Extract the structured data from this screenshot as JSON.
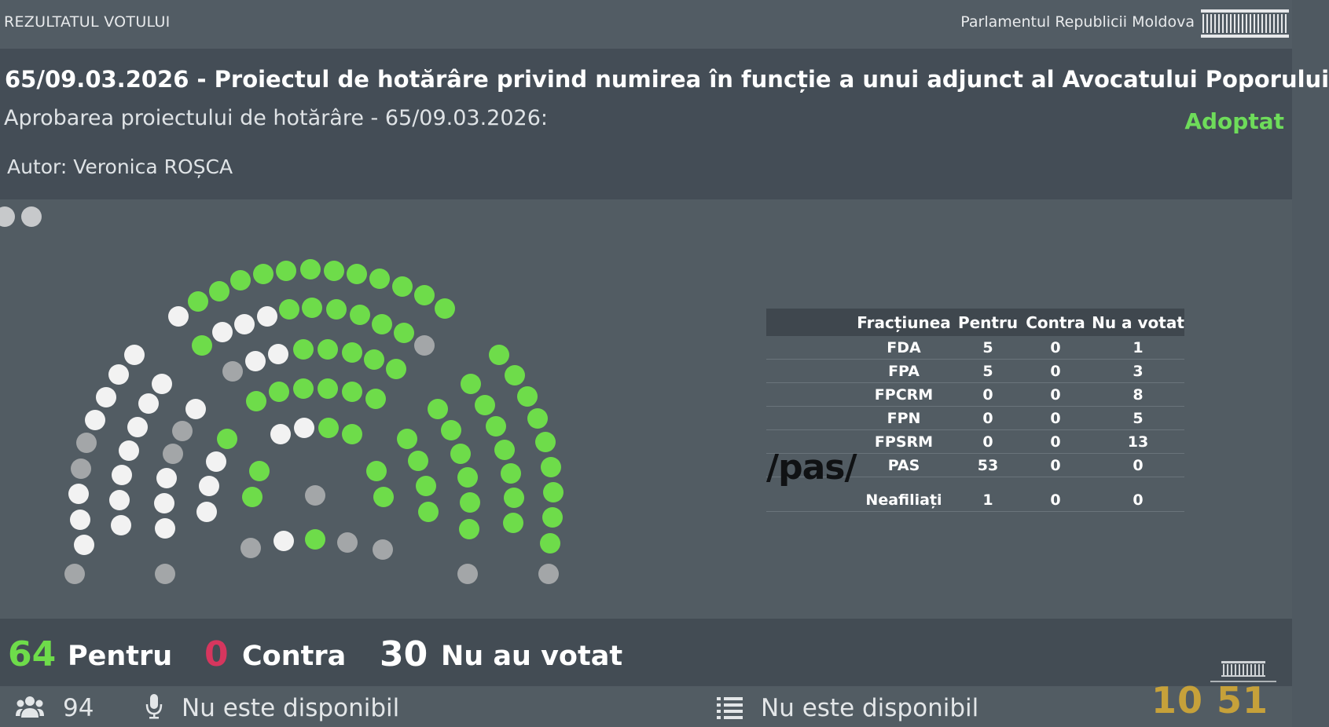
{
  "topbar": {
    "left_label": "REZULTATUL VOTULUI",
    "right_label": "Parlamentul Republicii Moldova"
  },
  "header": {
    "title": "65/09.03.2026 - Proiectul de hotărâre privind numirea în funcție a unui adjunct al Avocatului Poporului",
    "subtitle": "Aprobarea proiectului de hotărâre - 65/09.03.2026:",
    "status": "Adoptat",
    "author": "Autor: Veronica ROȘCA"
  },
  "table": {
    "headers": [
      "Fracțiunea",
      "Pentru",
      "Contra",
      "Nu a votat"
    ],
    "rows": [
      [
        "FDA",
        "5",
        "0",
        "1"
      ],
      [
        "FPA",
        "5",
        "0",
        "3"
      ],
      [
        "FPCRM",
        "0",
        "0",
        "8"
      ],
      [
        "FPN",
        "0",
        "0",
        "5"
      ],
      [
        "FPSRM",
        "0",
        "0",
        "13"
      ],
      [
        "PAS",
        "53",
        "0",
        "0"
      ],
      [
        "Neafiliați",
        "1",
        "0",
        "0"
      ]
    ],
    "pas_logo": "/pas/"
  },
  "summary": {
    "for_count": "64",
    "for_label": "Pentru",
    "against_count": "0",
    "against_label": "Contra",
    "absent_count": "30",
    "absent_label": "Nu au votat"
  },
  "footer": {
    "present_count": "94",
    "mic_status": "Nu este disponibil",
    "list_status": "Nu este disponibil"
  },
  "clock": "10 51",
  "colors": {
    "for": "#6edc4a",
    "absent_light": "#f2f2f2",
    "absent_gray": "#a3a6a8",
    "against": "#d6365e"
  },
  "icons": [
    "users-icon",
    "microphone-icon",
    "list-icon",
    "parliament-logo"
  ]
}
